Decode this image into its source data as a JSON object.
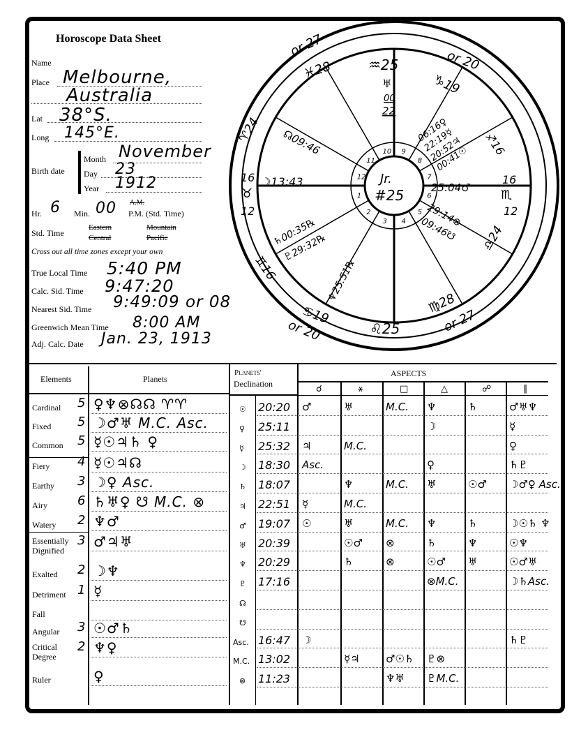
{
  "title": "Horoscope Data Sheet",
  "form": {
    "name_label": "Name",
    "name_value": "",
    "place_label": "Place",
    "place_value_1": "Melbourne,",
    "place_value_2": "Australia",
    "lat_label": "Lat",
    "lat_value": "38°S.",
    "long_label": "Long",
    "long_value": "145°E.",
    "birth_date_label": "Birth date",
    "month_label": "Month",
    "month_value": "November",
    "day_label": "Day",
    "day_value": "23",
    "year_label": "Year",
    "year_value": "1912",
    "hr_label": "Hr.",
    "hr_value": "6",
    "min_label": "Min.",
    "min_value": "00",
    "am_label": "A.M.",
    "pm_label": "P.M. (Std. Time)",
    "std_time_label": "Std. Time",
    "zones": [
      "Eastern",
      "Central",
      "Mountain",
      "Pacific"
    ],
    "cross_out_note": "Cross out all time zones except your own",
    "true_local_label": "True Local Time",
    "true_local_value": "5:40 PM",
    "calc_sid_label": "Calc. Sid. Time",
    "calc_sid_value": "9:47:20",
    "nearest_sid_label": "Nearest Sid. Time",
    "nearest_sid_value": "9:49:09 or 08",
    "gmt_label": "Greenwich Mean Time",
    "gmt_value": "8:00 AM",
    "adj_calc_label": "Adj. Calc. Date",
    "adj_calc_value": "Jan. 23, 1913"
  },
  "wheel": {
    "center_line_1": "Jr.",
    "center_line_2": "#25",
    "houses": [
      "1",
      "2",
      "3",
      "4",
      "5",
      "6",
      "7",
      "8",
      "9",
      "10",
      "11",
      "12"
    ],
    "cusps": [
      "or 27",
      "♓28",
      "♒25",
      "or 20",
      "♑19",
      "♐16",
      "16",
      "♏",
      "12",
      "♎24",
      "♍28",
      "or 27",
      "♌25",
      "♋19",
      "or 20",
      "♊16",
      "16",
      "♉",
      "12",
      "♈24"
    ],
    "planets": [
      "♅",
      "00",
      "22",
      "☊09:46",
      "☽13:43",
      "♄00:35℞",
      "♇29:32℞",
      "♆25:51℞",
      "06:16♀",
      "22:19☿",
      "20:52♃",
      "00:41☉",
      "25:04♂",
      "29:14⊗",
      "09:46☋"
    ]
  },
  "elements_table": {
    "headers": [
      "Elements",
      "Planets"
    ],
    "rows": [
      {
        "label": "Cardinal",
        "count": "5",
        "planets": "♀♆⊗☊☊ ♈♈"
      },
      {
        "label": "Fixed",
        "count": "5",
        "planets": "☽♂♅ M.C. Asc."
      },
      {
        "label": "Common",
        "count": "5",
        "planets": "☿☉♃♄ ♀"
      },
      {
        "label": "Fiery",
        "count": "4",
        "planets": "☿☉♃☊"
      },
      {
        "label": "Earthy",
        "count": "3",
        "planets": "☽♀ Asc."
      },
      {
        "label": "Airy",
        "count": "6",
        "planets": "♄♅♀ ☋ M.C. ⊗"
      },
      {
        "label": "Watery",
        "count": "2",
        "planets": "♆♂"
      },
      {
        "label": "Essentially Dignified",
        "count": "3",
        "planets": "♂♃♅"
      },
      {
        "label": "Exalted",
        "count": "2",
        "planets": "☽♆"
      },
      {
        "label": "Detriment",
        "count": "1",
        "planets": "☿"
      },
      {
        "label": "Fall",
        "count": "",
        "planets": ""
      },
      {
        "label": "Angular",
        "count": "3",
        "planets": "☉♂♄"
      },
      {
        "label": "Critical Degree",
        "count": "2",
        "planets": "♆♀"
      },
      {
        "label": "Ruler",
        "count": "",
        "planets": "♀"
      }
    ]
  },
  "declination": {
    "header_1": "Planets'",
    "header_2": "Declination",
    "aspects_header": "ASPECTS",
    "aspect_symbols": [
      "☌",
      "⚹",
      "□",
      "△",
      "☍",
      "∥"
    ],
    "rows": [
      {
        "symbol": "☉",
        "value": "20:20",
        "aspects": [
          "♂",
          "♅",
          "M.C.",
          "♆",
          "♄",
          "♂♅♆"
        ]
      },
      {
        "symbol": "♀",
        "value": "25:11",
        "aspects": [
          "",
          "",
          "",
          "☽",
          "",
          "☿"
        ]
      },
      {
        "symbol": "☿",
        "value": "25:32",
        "aspects": [
          "♃",
          "M.C.",
          "",
          "",
          "",
          "♀"
        ]
      },
      {
        "symbol": "☽",
        "value": "18:30",
        "aspects": [
          "Asc.",
          "",
          "",
          "♀",
          "",
          "♄♇"
        ]
      },
      {
        "symbol": "♄",
        "value": "18:07",
        "aspects": [
          "",
          "♆",
          "M.C.",
          "♅",
          "☉♂",
          "☽♂♀ Asc."
        ]
      },
      {
        "symbol": "♃",
        "value": "22:51",
        "aspects": [
          "☿",
          "M.C.",
          "",
          "",
          "",
          ""
        ]
      },
      {
        "symbol": "♂",
        "value": "19:07",
        "aspects": [
          "☉",
          "♅",
          "M.C.",
          "♆",
          "♄",
          "☽☉♄ ♆"
        ]
      },
      {
        "symbol": "♅",
        "value": "20:39",
        "aspects": [
          "",
          "☉♂",
          "⊗",
          "♄",
          "♆",
          "☉♆"
        ]
      },
      {
        "symbol": "♆",
        "value": "20:29",
        "aspects": [
          "",
          "♄",
          "⊗",
          "☉♂",
          "♅",
          "☉♂♅"
        ]
      },
      {
        "symbol": "♇",
        "value": "17:16",
        "aspects": [
          "",
          "",
          "",
          "⊗M.C.",
          "",
          "☽♄Asc."
        ]
      },
      {
        "symbol": "☊",
        "value": "",
        "aspects": [
          "",
          "",
          "",
          "",
          "",
          ""
        ]
      },
      {
        "symbol": "☋",
        "value": "",
        "aspects": [
          "",
          "",
          "",
          "",
          "",
          ""
        ]
      },
      {
        "symbol": "Asc.",
        "value": "16:47",
        "aspects": [
          "☽",
          "",
          "",
          "",
          "",
          "♄♇"
        ]
      },
      {
        "symbol": "M.C.",
        "value": "13:02",
        "aspects": [
          "",
          "☿♃",
          "♂☉♄",
          "♇⊗",
          "",
          ""
        ]
      },
      {
        "symbol": "⊗",
        "value": "11:23",
        "aspects": [
          "",
          "",
          "♆♅",
          "♇M.C.",
          "",
          ""
        ]
      }
    ]
  }
}
